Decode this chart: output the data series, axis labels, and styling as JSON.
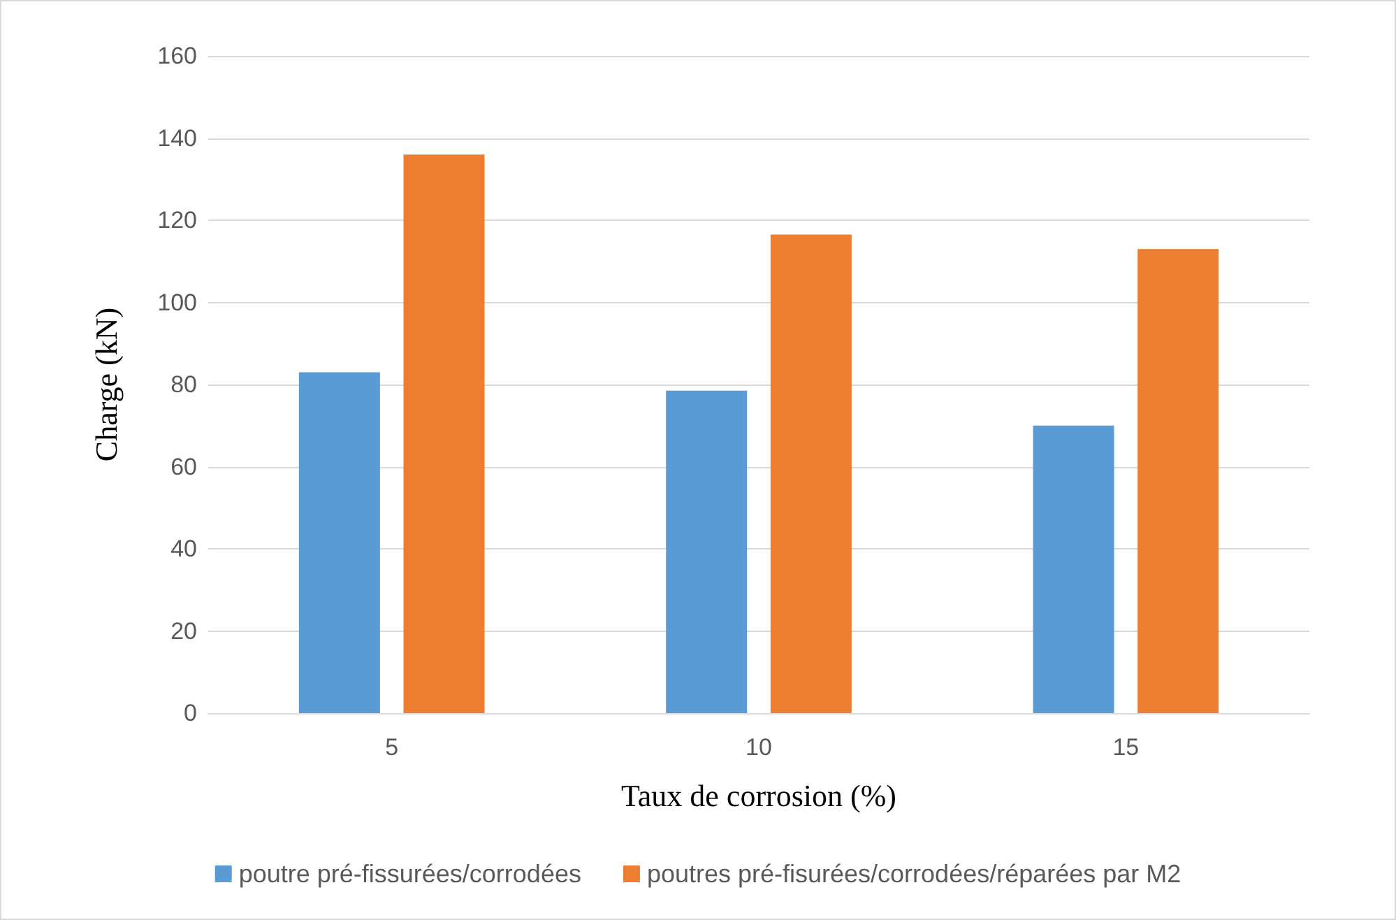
{
  "chart_data": {
    "type": "bar",
    "xlabel": "Taux de corrosion (%)",
    "ylabel": "Charge (kN)",
    "categories": [
      "5",
      "10",
      "15"
    ],
    "series": [
      {
        "name": "poutre pré-fissurées/corrodées",
        "color": "#5b9bd5",
        "values": [
          83,
          78.5,
          70
        ]
      },
      {
        "name": "poutres pré-fisurées/corrodées/réparées par M2",
        "color": "#ed7d31",
        "values": [
          136,
          116.5,
          113
        ]
      }
    ],
    "ylim": [
      0,
      160
    ],
    "yticks": [
      0,
      20,
      40,
      60,
      80,
      100,
      120,
      140,
      160
    ],
    "grid": "y",
    "legend": "bottom"
  }
}
